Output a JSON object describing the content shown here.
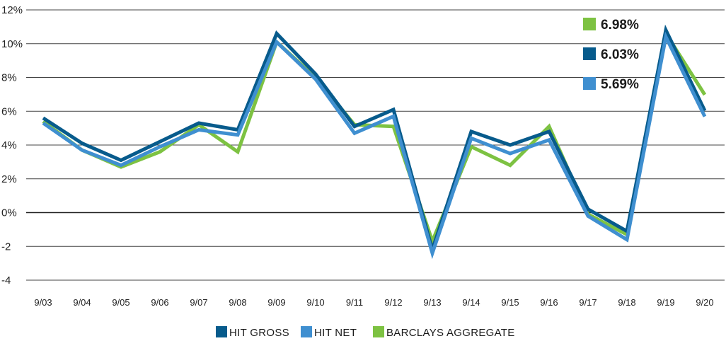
{
  "chart_data": {
    "type": "line",
    "categories": [
      "9/03",
      "9/04",
      "9/05",
      "9/06",
      "9/07",
      "9/08",
      "9/09",
      "9/10",
      "9/11",
      "9/12",
      "9/13",
      "9/14",
      "9/15",
      "9/16",
      "9/17",
      "9/18",
      "9/19",
      "9/20"
    ],
    "yticks": [
      "12%",
      "10%",
      "8%",
      "6%",
      "4%",
      "2%",
      "0%",
      "-2",
      "-4"
    ],
    "ylim": [
      -4,
      12
    ],
    "grid": true,
    "legend_position": "bottom",
    "series": [
      {
        "name": "BARCLAYS AGGREGATE",
        "color": "#7dc242",
        "values": [
          5.4,
          3.7,
          2.7,
          3.6,
          5.2,
          3.6,
          10.1,
          8.0,
          5.2,
          5.1,
          -1.7,
          3.9,
          2.8,
          5.1,
          -0.1,
          -1.3,
          10.6,
          6.98
        ]
      },
      {
        "name": "HIT GROSS",
        "color": "#075b8c",
        "values": [
          5.6,
          4.1,
          3.1,
          4.2,
          5.3,
          4.9,
          10.6,
          8.2,
          5.1,
          6.1,
          -2.2,
          4.8,
          4.0,
          4.8,
          0.2,
          -1.1,
          10.8,
          6.03
        ]
      },
      {
        "name": "HIT NET",
        "color": "#3f8fd0",
        "values": [
          5.3,
          3.7,
          2.8,
          3.9,
          4.9,
          4.6,
          10.1,
          7.9,
          4.7,
          5.7,
          -2.4,
          4.4,
          3.5,
          4.3,
          -0.2,
          -1.6,
          10.4,
          5.69
        ]
      }
    ],
    "callouts": [
      {
        "label": "6.98%",
        "color": "#7dc242"
      },
      {
        "label": "6.03%",
        "color": "#075b8c"
      },
      {
        "label": "5.69%",
        "color": "#3f8fd0"
      }
    ],
    "legend": [
      {
        "label": "HIT GROSS",
        "color": "#075b8c"
      },
      {
        "label": "HIT NET",
        "color": "#3f8fd0"
      },
      {
        "label": "BARCLAYS AGGREGATE",
        "color": "#7dc242"
      }
    ]
  }
}
